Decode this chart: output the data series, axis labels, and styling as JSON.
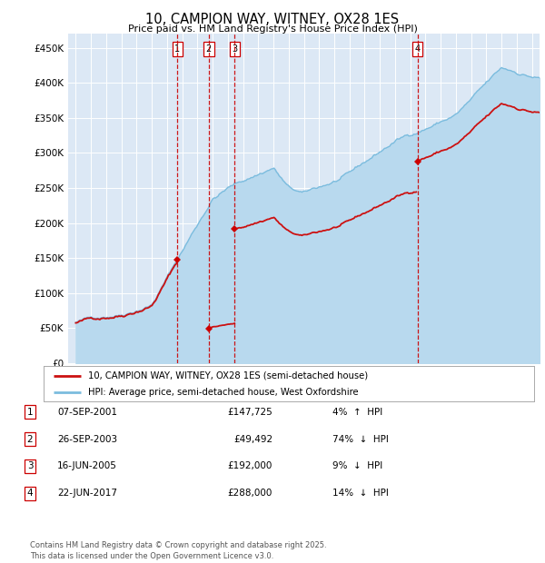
{
  "title": "10, CAMPION WAY, WITNEY, OX28 1ES",
  "subtitle": "Price paid vs. HM Land Registry's House Price Index (HPI)",
  "ylabel_ticks": [
    "£0",
    "£50K",
    "£100K",
    "£150K",
    "£200K",
    "£250K",
    "£300K",
    "£350K",
    "£400K",
    "£450K"
  ],
  "ytick_values": [
    0,
    50000,
    100000,
    150000,
    200000,
    250000,
    300000,
    350000,
    400000,
    450000
  ],
  "ylim": [
    0,
    470000
  ],
  "xlim_start": 1994.5,
  "xlim_end": 2025.5,
  "hpi_color": "#7bbcde",
  "hpi_fill_color": "#b8d9ee",
  "price_color": "#cc1111",
  "dashed_line_color": "#cc0000",
  "bg_color": "#dce8f5",
  "grid_color": "#ffffff",
  "legend_label_price": "10, CAMPION WAY, WITNEY, OX28 1ES (semi-detached house)",
  "legend_label_hpi": "HPI: Average price, semi-detached house, West Oxfordshire",
  "transactions": [
    {
      "num": 1,
      "date": "07-SEP-2001",
      "price": 147725,
      "pct": "4%",
      "dir": "↑",
      "year": 2001.69
    },
    {
      "num": 2,
      "date": "26-SEP-2003",
      "price": 49492,
      "pct": "74%",
      "dir": "↓",
      "year": 2003.74
    },
    {
      "num": 3,
      "date": "16-JUN-2005",
      "price": 192000,
      "pct": "9%",
      "dir": "↓",
      "year": 2005.46
    },
    {
      "num": 4,
      "date": "22-JUN-2017",
      "price": 288000,
      "pct": "14%",
      "dir": "↓",
      "year": 2017.47
    }
  ],
  "footer": "Contains HM Land Registry data © Crown copyright and database right 2025.\nThis data is licensed under the Open Government Licence v3.0."
}
